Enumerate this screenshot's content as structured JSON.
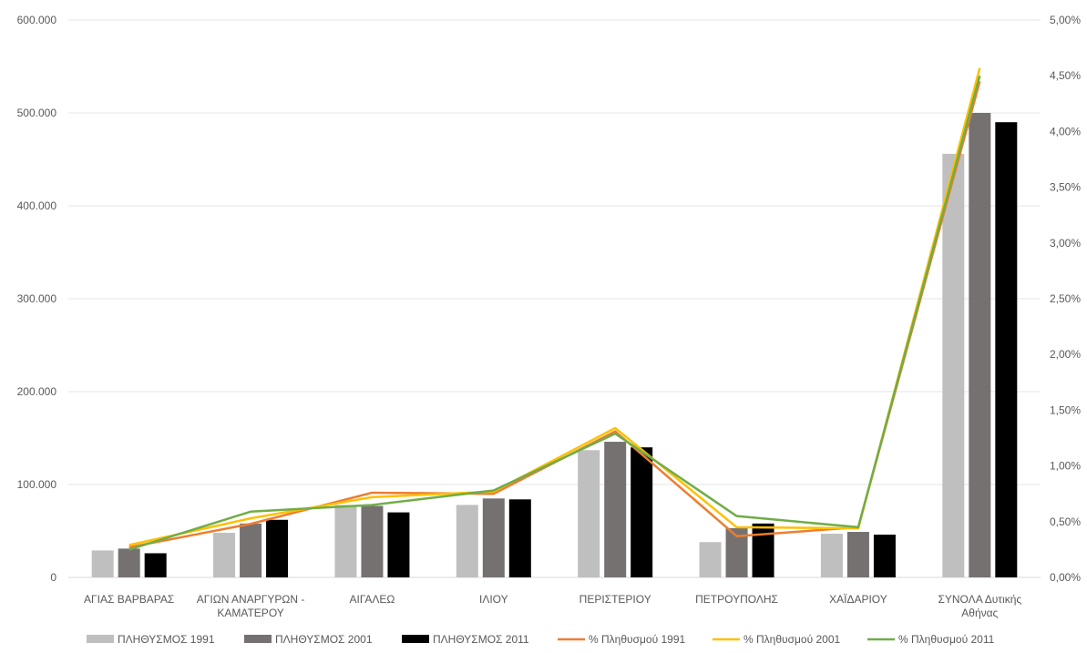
{
  "chart_data": {
    "type": "bar",
    "categories": [
      [
        "ΑΓΙΑΣ ΒΑΡΒΑΡΑΣ"
      ],
      [
        "ΑΓΙΩΝ ΑΝΑΡΓΥΡΩΝ -",
        "ΚΑΜΑΤΕΡΟΥ"
      ],
      [
        "ΑΙΓΑΛΕΩ"
      ],
      [
        "ΙΛΙΟΥ"
      ],
      [
        "ΠΕΡΙΣΤΕΡΙΟΥ"
      ],
      [
        "ΠΕΤΡΟΥΠΟΛΗΣ"
      ],
      [
        "ΧΑΪΔΑΡΙΟΥ"
      ],
      [
        "ΣΥΝΟΛΑ Δυτικής",
        "Αθήνας"
      ]
    ],
    "bar_series": [
      {
        "name": "ΠΛΗΘΥΣΜΟΣ 1991",
        "color": "#bfbfbf",
        "values": [
          29000,
          48000,
          78000,
          78000,
          137000,
          38000,
          47000,
          456000
        ]
      },
      {
        "name": "ΠΛΗΘΥΣΜΟΣ 2001",
        "color": "#767171",
        "values": [
          31000,
          58000,
          77000,
          85000,
          146000,
          53000,
          49000,
          500000
        ]
      },
      {
        "name": "ΠΛΗΘΥΣΜΟΣ 2011",
        "color": "#000000",
        "values": [
          26000,
          62000,
          70000,
          84000,
          140000,
          58000,
          46000,
          490000
        ]
      }
    ],
    "line_series": [
      {
        "name": "% Πληθυσμού 1991",
        "color": "#ed7d31",
        "values": [
          0.27,
          0.48,
          0.76,
          0.75,
          1.31,
          0.37,
          0.45,
          4.45
        ]
      },
      {
        "name": "% Πληθυσμού 2001",
        "color": "#ffc000",
        "values": [
          0.29,
          0.53,
          0.72,
          0.77,
          1.34,
          0.45,
          0.44,
          4.57
        ]
      },
      {
        "name": "% Πληθυσμού 2011",
        "color": "#70ad47",
        "values": [
          0.25,
          0.59,
          0.65,
          0.78,
          1.29,
          0.55,
          0.45,
          4.5
        ]
      }
    ],
    "y_left": {
      "min": 0,
      "max": 600000,
      "ticks": [
        "0",
        "100.000",
        "200.000",
        "300.000",
        "400.000",
        "500.000",
        "600.000"
      ]
    },
    "y_right": {
      "min": 0,
      "max": 5,
      "ticks": [
        "0,00%",
        "0,50%",
        "1,00%",
        "1,50%",
        "2,00%",
        "2,50%",
        "3,00%",
        "3,50%",
        "4,00%",
        "4,50%",
        "5,00%"
      ]
    },
    "grid": true,
    "legend_position": "bottom"
  }
}
